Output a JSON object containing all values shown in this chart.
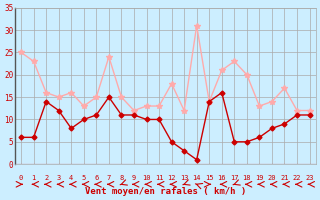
{
  "hours": [
    0,
    1,
    2,
    3,
    4,
    5,
    6,
    7,
    8,
    9,
    10,
    11,
    12,
    13,
    14,
    15,
    16,
    17,
    18,
    19,
    20,
    21,
    22,
    23
  ],
  "vent_moyen": [
    6,
    6,
    14,
    12,
    8,
    10,
    11,
    15,
    11,
    11,
    10,
    10,
    5,
    3,
    1,
    14,
    16,
    5,
    5,
    6,
    8,
    9,
    11,
    11
  ],
  "rafales": [
    25,
    23,
    16,
    15,
    16,
    13,
    15,
    24,
    15,
    12,
    13,
    13,
    18,
    12,
    31,
    14,
    21,
    23,
    20,
    13,
    14,
    17,
    12,
    12
  ],
  "arrow_dirs": [
    90,
    270,
    270,
    270,
    270,
    270,
    270,
    270,
    225,
    270,
    270,
    270,
    270,
    225,
    315,
    90,
    270,
    225,
    270,
    270,
    270,
    270,
    270,
    270
  ],
  "xlabel": "Vent moyen/en rafales ( km/h )",
  "ylabel": "",
  "ylim": [
    0,
    35
  ],
  "yticks": [
    0,
    5,
    10,
    15,
    20,
    25,
    30,
    35
  ],
  "xticks": [
    0,
    1,
    2,
    3,
    4,
    5,
    6,
    7,
    8,
    9,
    10,
    11,
    12,
    13,
    14,
    15,
    16,
    17,
    18,
    19,
    20,
    21,
    22,
    23
  ],
  "color_moyen": "#cc0000",
  "color_rafales": "#ffaaaa",
  "bg_color": "#cceeff",
  "grid_color": "#aaaaaa",
  "arrow_color": "#cc0000"
}
